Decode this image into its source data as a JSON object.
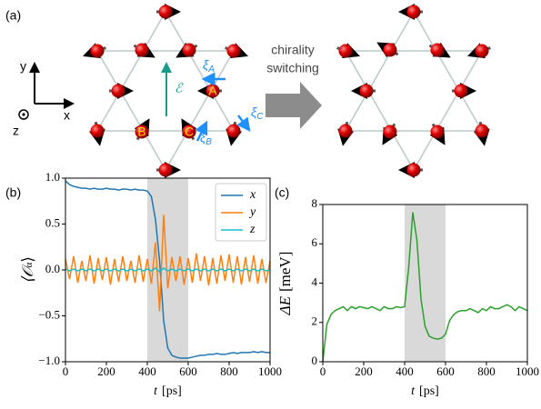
{
  "panel_labels": [
    "(a)",
    "(b)",
    "(c)"
  ],
  "diagram": {
    "axis_labels": [
      "y",
      "x",
      "z"
    ],
    "arrow_text": [
      "chirality",
      "switching"
    ],
    "field_label": "ℰ",
    "site_labels": [
      "A",
      "B",
      "C"
    ],
    "vector_labels": [
      {
        "symbol": "ξ",
        "index": "A"
      },
      {
        "symbol": "ξ",
        "index": "B"
      },
      {
        "symbol": "ξ",
        "index": "C"
      }
    ]
  },
  "chart_data": [
    {
      "type": "line",
      "xlabel": [
        "t",
        "[ps]"
      ],
      "ylabel": [
        "⟨𝒪",
        "α",
        "⟩"
      ],
      "x": [
        0,
        20,
        40,
        60,
        80,
        100,
        120,
        140,
        160,
        180,
        200,
        220,
        240,
        260,
        280,
        300,
        320,
        340,
        360,
        380,
        400,
        420,
        440,
        460,
        480,
        500,
        520,
        540,
        560,
        580,
        600,
        620,
        640,
        660,
        680,
        700,
        720,
        740,
        760,
        780,
        800,
        820,
        840,
        860,
        880,
        900,
        920,
        940,
        960,
        980,
        1000
      ],
      "series": [
        {
          "name": "x",
          "color": "#1f77b4",
          "values": [
            0.97,
            0.93,
            0.91,
            0.9,
            0.89,
            0.89,
            0.88,
            0.89,
            0.88,
            0.88,
            0.89,
            0.88,
            0.88,
            0.87,
            0.88,
            0.88,
            0.87,
            0.88,
            0.87,
            0.87,
            0.86,
            0.8,
            0.55,
            0.1,
            -0.55,
            -0.85,
            -0.93,
            -0.95,
            -0.96,
            -0.96,
            -0.96,
            -0.95,
            -0.94,
            -0.93,
            -0.93,
            -0.92,
            -0.92,
            -0.91,
            -0.92,
            -0.92,
            -0.91,
            -0.9,
            -0.91,
            -0.9,
            -0.9,
            -0.9,
            -0.89,
            -0.9,
            -0.89,
            -0.9,
            -0.9
          ]
        },
        {
          "name": "y",
          "color": "#ff7f0e",
          "values": [
            0.12,
            -0.1,
            0.15,
            -0.14,
            0.1,
            -0.12,
            0.16,
            -0.15,
            0.13,
            -0.11,
            0.14,
            -0.16,
            0.12,
            -0.13,
            0.15,
            -0.12,
            0.1,
            -0.14,
            0.16,
            -0.13,
            0.12,
            -0.15,
            0.3,
            -0.45,
            0.6,
            -0.2,
            0.14,
            -0.12,
            0.15,
            -0.16,
            0.13,
            -0.14,
            0.18,
            -0.12,
            0.15,
            -0.17,
            0.13,
            -0.15,
            0.16,
            -0.12,
            0.17,
            -0.14,
            0.15,
            -0.16,
            0.14,
            -0.13,
            0.16,
            -0.15,
            0.12,
            -0.14,
            0.1
          ]
        },
        {
          "name": "z",
          "color": "#17becf",
          "values": [
            0.01,
            -0.01,
            0.01,
            -0.01,
            0.01,
            -0.01,
            0.01,
            -0.01,
            0.01,
            -0.01,
            0.01,
            -0.01,
            0.01,
            -0.01,
            0.01,
            -0.01,
            0.01,
            -0.01,
            0.01,
            -0.01,
            0.01,
            -0.01,
            0.02,
            -0.02,
            0.02,
            -0.01,
            0.01,
            -0.01,
            0.01,
            -0.01,
            0.01,
            -0.01,
            0.01,
            -0.01,
            0.01,
            -0.01,
            0.01,
            -0.01,
            0.01,
            -0.01,
            0.01,
            -0.01,
            0.01,
            -0.01,
            0.01,
            -0.01,
            0.01,
            -0.01,
            0.01,
            -0.01,
            0
          ]
        }
      ],
      "xlim": [
        0,
        1000
      ],
      "xticks": [
        0,
        200,
        400,
        600,
        800,
        1000
      ],
      "ylim": [
        -1,
        1
      ],
      "yticks": [
        {
          "value": -1,
          "label": "−1.0"
        },
        {
          "value": -0.5,
          "label": "−0.5"
        },
        {
          "value": 0,
          "label": "0.0"
        },
        {
          "value": 0.5,
          "label": "0.5"
        },
        {
          "value": 1,
          "label": "1.0"
        }
      ],
      "shaded_span": [
        400,
        600
      ],
      "legend": "upper right"
    },
    {
      "type": "line",
      "xlabel": [
        "t",
        "[ps]"
      ],
      "ylabel": [
        "ΔE",
        "[meV]"
      ],
      "x": [
        0,
        20,
        40,
        60,
        80,
        100,
        120,
        140,
        160,
        180,
        200,
        220,
        240,
        260,
        280,
        300,
        320,
        340,
        360,
        380,
        400,
        420,
        440,
        460,
        480,
        500,
        520,
        540,
        560,
        580,
        600,
        620,
        640,
        660,
        680,
        700,
        720,
        740,
        760,
        780,
        800,
        820,
        840,
        860,
        880,
        900,
        920,
        940,
        960,
        980,
        1000
      ],
      "series": [
        {
          "color": "#2ca02c",
          "values": [
            0,
            1.9,
            2.4,
            2.6,
            2.7,
            2.8,
            2.6,
            2.8,
            2.7,
            2.8,
            2.75,
            2.7,
            2.8,
            2.7,
            2.6,
            2.8,
            2.7,
            2.7,
            2.8,
            2.75,
            2.8,
            4.8,
            7.6,
            6.2,
            3.2,
            1.8,
            1.3,
            1.2,
            1.15,
            1.2,
            1.4,
            2.1,
            2.4,
            2.55,
            2.6,
            2.6,
            2.7,
            2.6,
            2.5,
            2.7,
            2.6,
            2.8,
            2.7,
            2.7,
            2.8,
            2.9,
            2.8,
            2.6,
            2.8,
            2.7,
            2.6
          ]
        }
      ],
      "xlim": [
        0,
        1000
      ],
      "xticks": [
        0,
        200,
        400,
        600,
        800,
        1000
      ],
      "ylim": [
        0,
        8
      ],
      "yticks": [
        0,
        2,
        4,
        6,
        8
      ],
      "shaded_span": [
        400,
        600
      ]
    }
  ]
}
